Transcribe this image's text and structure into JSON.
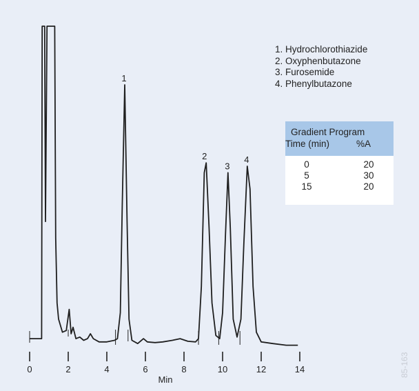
{
  "chart_data": {
    "type": "line",
    "title": "",
    "xlabel": "Min",
    "ylabel": "",
    "xlim": [
      0,
      14
    ],
    "x_ticks": [
      "0",
      "2",
      "4",
      "6",
      "8",
      "10",
      "12",
      "14"
    ],
    "grid": false,
    "series": [
      {
        "name": "",
        "points": [
          [
            0.0,
            0.04
          ],
          [
            0.55,
            0.04
          ],
          [
            0.62,
            0.04
          ],
          [
            0.65,
            1.0
          ],
          [
            0.78,
            1.0
          ],
          [
            0.82,
            0.4
          ],
          [
            0.9,
            1.0
          ],
          [
            1.3,
            1.0
          ],
          [
            1.35,
            0.35
          ],
          [
            1.42,
            0.15
          ],
          [
            1.5,
            0.1
          ],
          [
            1.7,
            0.06
          ],
          [
            1.9,
            0.065
          ],
          [
            2.05,
            0.13
          ],
          [
            2.15,
            0.055
          ],
          [
            2.25,
            0.075
          ],
          [
            2.4,
            0.04
          ],
          [
            2.6,
            0.045
          ],
          [
            2.8,
            0.035
          ],
          [
            3.0,
            0.04
          ],
          [
            3.15,
            0.055
          ],
          [
            3.3,
            0.04
          ],
          [
            3.6,
            0.03
          ],
          [
            4.0,
            0.03
          ],
          [
            4.4,
            0.035
          ],
          [
            4.55,
            0.04
          ],
          [
            4.7,
            0.12
          ],
          [
            4.8,
            0.45
          ],
          [
            4.93,
            0.82
          ],
          [
            5.05,
            0.4
          ],
          [
            5.15,
            0.1
          ],
          [
            5.3,
            0.035
          ],
          [
            5.6,
            0.025
          ],
          [
            5.9,
            0.04
          ],
          [
            6.1,
            0.03
          ],
          [
            6.5,
            0.028
          ],
          [
            6.9,
            0.03
          ],
          [
            7.4,
            0.035
          ],
          [
            7.8,
            0.04
          ],
          [
            8.2,
            0.032
          ],
          [
            8.6,
            0.03
          ],
          [
            8.75,
            0.04
          ],
          [
            8.9,
            0.2
          ],
          [
            9.05,
            0.55
          ],
          [
            9.15,
            0.58
          ],
          [
            9.3,
            0.38
          ],
          [
            9.45,
            0.15
          ],
          [
            9.65,
            0.05
          ],
          [
            9.85,
            0.04
          ],
          [
            10.0,
            0.12
          ],
          [
            10.15,
            0.36
          ],
          [
            10.28,
            0.55
          ],
          [
            10.4,
            0.38
          ],
          [
            10.55,
            0.1
          ],
          [
            10.75,
            0.045
          ],
          [
            10.95,
            0.1
          ],
          [
            11.1,
            0.33
          ],
          [
            11.28,
            0.57
          ],
          [
            11.42,
            0.5
          ],
          [
            11.58,
            0.2
          ],
          [
            11.75,
            0.06
          ],
          [
            12.0,
            0.03
          ],
          [
            12.6,
            0.025
          ],
          [
            13.3,
            0.02
          ],
          [
            13.9,
            0.02
          ]
        ]
      }
    ],
    "peak_labels": [
      {
        "label": "1",
        "x": 4.93,
        "y": 0.82
      },
      {
        "label": "2",
        "x": 9.1,
        "y": 0.58
      },
      {
        "label": "3",
        "x": 10.28,
        "y": 0.55
      },
      {
        "label": "4",
        "x": 11.28,
        "y": 0.57
      }
    ]
  },
  "legend": {
    "items": [
      "1. Hydrochlorothiazide",
      "2. Oxyphenbutazone",
      "3. Furosemide",
      "4. Phenylbutazone"
    ]
  },
  "gradient_table": {
    "title": "Gradient Program",
    "col_time": "Time (min)",
    "col_a": "%A",
    "rows": [
      {
        "time": "0",
        "a": "20"
      },
      {
        "time": "5",
        "a": "30"
      },
      {
        "time": "15",
        "a": "20"
      }
    ]
  },
  "figure_code": "85-163",
  "colors": {
    "background": "#e9eef7",
    "trace": "#1f1f1f",
    "table_header": "#a8c7e8"
  }
}
